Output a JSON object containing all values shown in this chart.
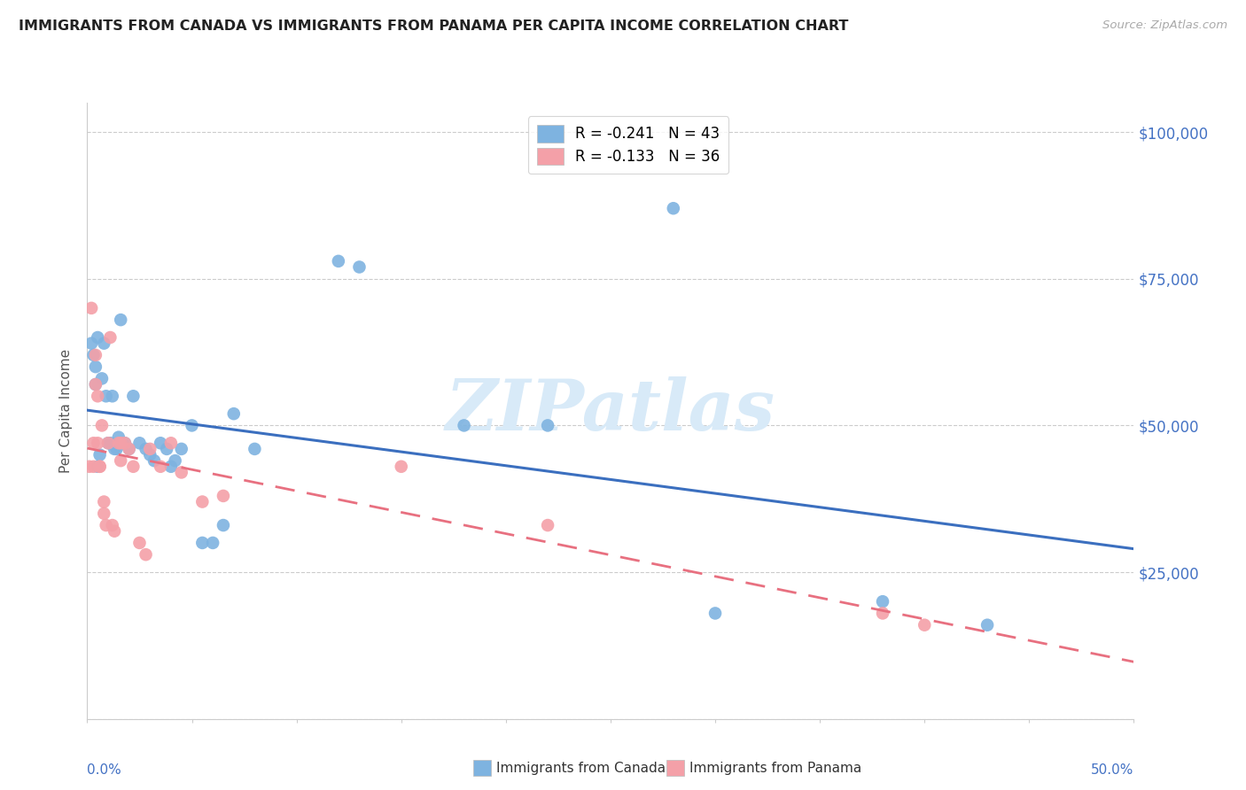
{
  "title": "IMMIGRANTS FROM CANADA VS IMMIGRANTS FROM PANAMA PER CAPITA INCOME CORRELATION CHART",
  "source": "Source: ZipAtlas.com",
  "ylabel": "Per Capita Income",
  "xlim": [
    0.0,
    0.5
  ],
  "ylim": [
    0,
    105000
  ],
  "watermark": "ZIPatlas",
  "legend_canada": "R = -0.241   N = 43",
  "legend_panama": "R = -0.133   N = 36",
  "canada_color": "#7EB3E0",
  "panama_color": "#F4A0A8",
  "trend_canada_color": "#3B6FBF",
  "trend_panama_color": "#E87080",
  "grid_color": "#CCCCCC",
  "ytick_color": "#4472C4",
  "canada_points_x": [
    0.002,
    0.003,
    0.004,
    0.004,
    0.005,
    0.005,
    0.006,
    0.007,
    0.008,
    0.009,
    0.01,
    0.011,
    0.012,
    0.013,
    0.014,
    0.015,
    0.016,
    0.018,
    0.02,
    0.022,
    0.025,
    0.028,
    0.03,
    0.032,
    0.035,
    0.038,
    0.04,
    0.042,
    0.045,
    0.05,
    0.055,
    0.06,
    0.065,
    0.07,
    0.08,
    0.12,
    0.13,
    0.18,
    0.22,
    0.28,
    0.3,
    0.38,
    0.43
  ],
  "canada_points_y": [
    64000,
    62000,
    60000,
    57000,
    65000,
    43000,
    45000,
    58000,
    64000,
    55000,
    47000,
    47000,
    55000,
    46000,
    46000,
    48000,
    68000,
    47000,
    46000,
    55000,
    47000,
    46000,
    45000,
    44000,
    47000,
    46000,
    43000,
    44000,
    46000,
    50000,
    30000,
    30000,
    33000,
    52000,
    46000,
    78000,
    77000,
    50000,
    50000,
    87000,
    18000,
    20000,
    16000
  ],
  "panama_points_x": [
    0.001,
    0.002,
    0.003,
    0.003,
    0.004,
    0.004,
    0.005,
    0.005,
    0.006,
    0.006,
    0.007,
    0.008,
    0.008,
    0.009,
    0.01,
    0.011,
    0.012,
    0.013,
    0.015,
    0.016,
    0.016,
    0.018,
    0.02,
    0.022,
    0.025,
    0.028,
    0.03,
    0.035,
    0.04,
    0.045,
    0.055,
    0.065,
    0.15,
    0.22,
    0.38,
    0.4
  ],
  "panama_points_y": [
    43000,
    70000,
    43000,
    47000,
    62000,
    57000,
    55000,
    47000,
    43000,
    43000,
    50000,
    37000,
    35000,
    33000,
    47000,
    65000,
    33000,
    32000,
    47000,
    47000,
    44000,
    47000,
    46000,
    43000,
    30000,
    28000,
    46000,
    43000,
    47000,
    42000,
    37000,
    38000,
    43000,
    33000,
    18000,
    16000
  ]
}
